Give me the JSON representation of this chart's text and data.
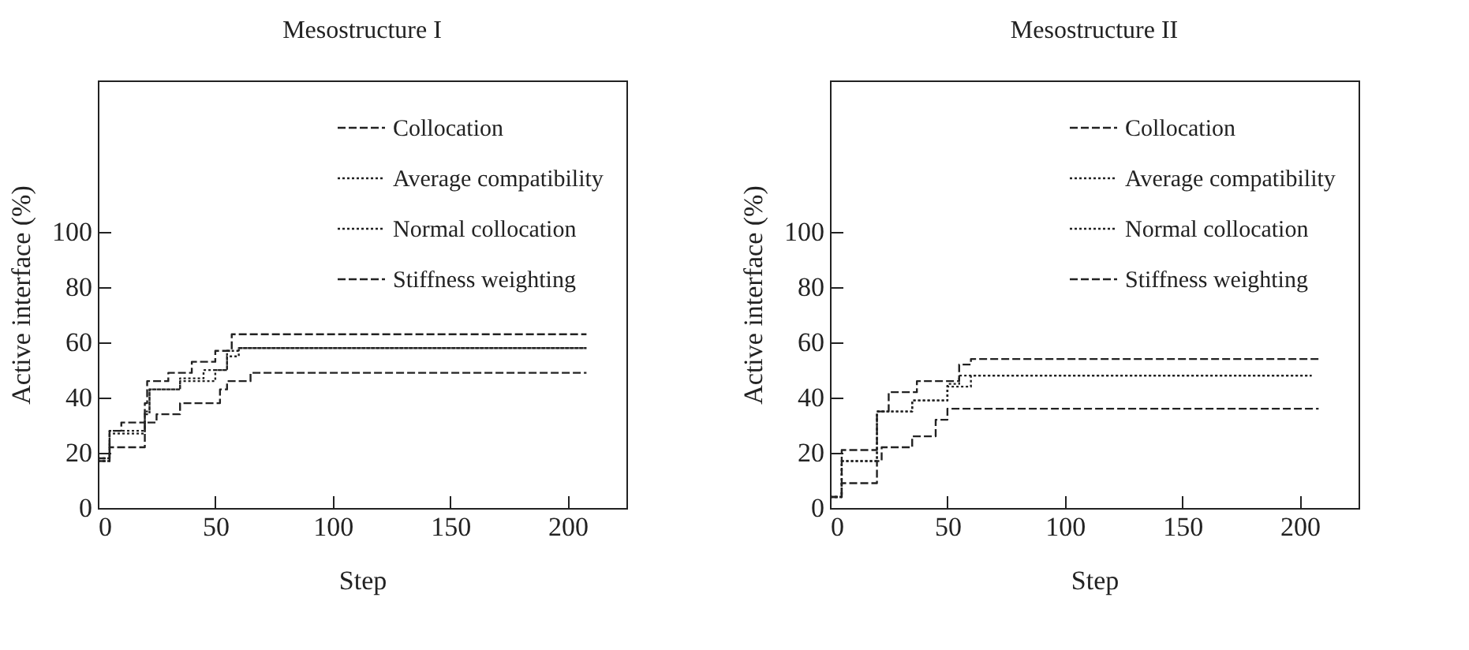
{
  "chart_data": [
    {
      "type": "step",
      "title": "Mesostructure I",
      "xlabel": "Step",
      "ylabel": "Active interface (%)",
      "xlim": [
        0,
        225
      ],
      "ylim": [
        0,
        155
      ],
      "xticks": [
        0,
        50,
        100,
        150,
        200
      ],
      "yticks": [
        0,
        20,
        40,
        60,
        80,
        100
      ],
      "grid": false,
      "legend": "top right",
      "series": [
        {
          "name": "Collocation",
          "color": "#222222",
          "line_style": "dashed",
          "x": [
            0,
            5,
            10,
            20,
            21,
            30,
            40,
            50,
            57,
            208
          ],
          "values": [
            18,
            28,
            31,
            38,
            46,
            49,
            53,
            57,
            63,
            63
          ]
        },
        {
          "name": "Average compatibility",
          "color": "#222222",
          "line_style": "dotted",
          "x": [
            0,
            5,
            20,
            22,
            35,
            45,
            55,
            60,
            208
          ],
          "values": [
            18,
            28,
            35,
            43,
            47,
            50,
            57,
            58,
            58
          ]
        },
        {
          "name": "Normal collocation",
          "color": "#222222",
          "line_style": "dotted",
          "x": [
            0,
            5,
            20,
            22,
            35,
            50,
            55,
            60,
            208
          ],
          "values": [
            17,
            27,
            34,
            43,
            46,
            50,
            55,
            58,
            58
          ]
        },
        {
          "name": "Stiffness weighting",
          "color": "#222222",
          "line_style": "dashed",
          "x": [
            0,
            5,
            20,
            25,
            35,
            52,
            55,
            65,
            208
          ],
          "values": [
            17,
            22,
            31,
            34,
            38,
            43,
            46,
            49,
            49
          ]
        }
      ]
    },
    {
      "type": "step",
      "title": "Mesostructure II",
      "xlabel": "Step",
      "ylabel": "Active interface (%)",
      "xlim": [
        0,
        225
      ],
      "ylim": [
        0,
        155
      ],
      "xticks": [
        0,
        50,
        100,
        150,
        200
      ],
      "yticks": [
        0,
        20,
        40,
        60,
        80,
        100
      ],
      "grid": false,
      "legend": "top right",
      "series": [
        {
          "name": "Collocation",
          "color": "#222222",
          "line_style": "dashed",
          "x": [
            0,
            5,
            20,
            25,
            37,
            50,
            55,
            60,
            208
          ],
          "values": [
            4,
            21,
            35,
            42,
            46,
            46,
            52,
            54,
            54
          ]
        },
        {
          "name": "Average compatibility",
          "color": "#222222",
          "line_style": "dotted",
          "x": [
            0,
            5,
            20,
            35,
            50,
            55,
            205
          ],
          "values": [
            4,
            17,
            35,
            39,
            45,
            48,
            48
          ]
        },
        {
          "name": "Normal collocation",
          "color": "#222222",
          "line_style": "dotted",
          "x": [
            0,
            5,
            20,
            35,
            50,
            60,
            205
          ],
          "values": [
            4,
            17,
            35,
            39,
            44,
            48,
            48
          ]
        },
        {
          "name": "Stiffness weighting",
          "color": "#222222",
          "line_style": "dashed",
          "x": [
            0,
            5,
            20,
            22,
            35,
            45,
            50,
            208
          ],
          "values": [
            4,
            9,
            17,
            22,
            26,
            32,
            36,
            36
          ]
        }
      ]
    }
  ]
}
